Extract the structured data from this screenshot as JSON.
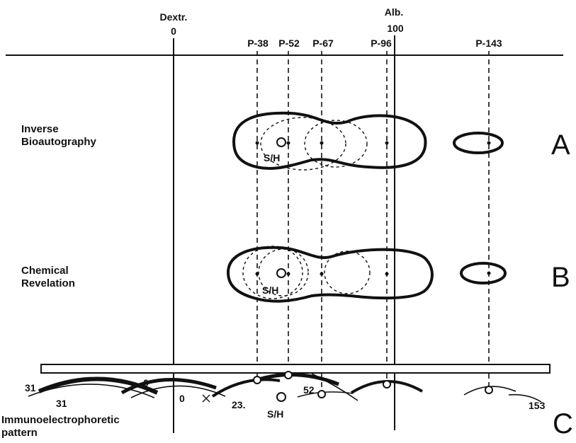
{
  "top_markers": {
    "dextr_label": "Dextr.",
    "dextr_value": "0",
    "alb_label": "Alb.",
    "alb_value": "100"
  },
  "peaks": [
    "P-38",
    "P-52",
    "P-67",
    "P-96",
    "P-143"
  ],
  "rows": [
    {
      "id": "A",
      "letter": "A",
      "label_lines": [
        "Inverse",
        "Bioautography"
      ],
      "sh_label": "S/H"
    },
    {
      "id": "B",
      "letter": "B",
      "label_lines": [
        "Chemical",
        "Revelation"
      ],
      "sh_label": "S/H"
    },
    {
      "id": "C",
      "letter": "C",
      "label_lines": [
        "Immunoelectrophoretic",
        "pattern"
      ],
      "sh_label": "S/H"
    }
  ],
  "arc_numbers": {
    "n31_upper": "31",
    "n31_lower": "31",
    "n0_upper": "0",
    "n0_lower": "0",
    "n23": "23.",
    "n52": "52",
    "n153": "153"
  },
  "colors": {
    "ink": "#111111",
    "paper": "#ffffff"
  }
}
